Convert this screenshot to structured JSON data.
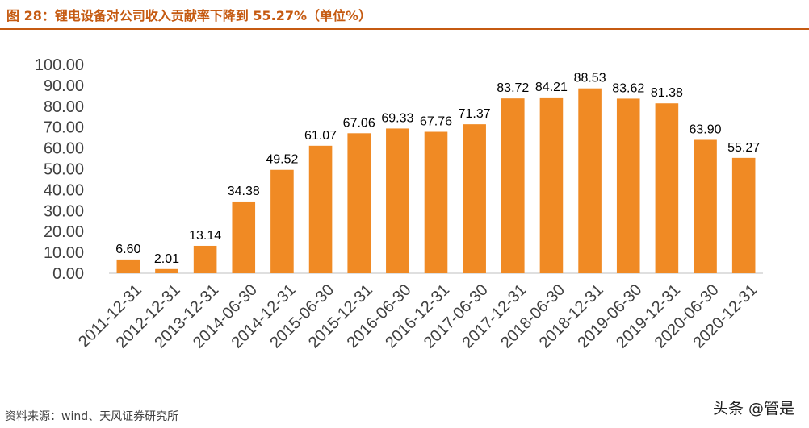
{
  "header": {
    "title": "图 28：锂电设备对公司收入贡献率下降到 55.27%（单位%）"
  },
  "footer": {
    "source": "资料来源：wind、天风证券研究所"
  },
  "watermark": "头条 @管是",
  "colors": {
    "bar": "#f08a24",
    "accent": "#c55a11",
    "axis": "#bfbfbf",
    "grid": "#d9d9d9"
  },
  "chart_data": {
    "type": "bar",
    "title": "",
    "xlabel": "",
    "ylabel": "",
    "ylim": [
      0,
      100
    ],
    "y_ticks": [
      "0.00",
      "10.00",
      "20.00",
      "30.00",
      "40.00",
      "50.00",
      "60.00",
      "70.00",
      "80.00",
      "90.00",
      "100.00"
    ],
    "grid": true,
    "legend": "none",
    "categories": [
      "2011-12-31",
      "2012-12-31",
      "2013-12-31",
      "2014-06-30",
      "2014-12-31",
      "2015-06-30",
      "2015-12-31",
      "2016-06-30",
      "2016-12-31",
      "2017-06-30",
      "2017-12-31",
      "2018-06-30",
      "2018-12-31",
      "2019-06-30",
      "2019-12-31",
      "2020-06-30",
      "2020-12-31"
    ],
    "values": [
      6.6,
      2.01,
      13.14,
      34.38,
      49.52,
      61.07,
      67.06,
      69.33,
      67.76,
      71.37,
      83.72,
      84.21,
      88.53,
      83.62,
      81.38,
      63.9,
      55.27
    ],
    "value_labels": [
      "6.60",
      "2.01",
      "13.14",
      "34.38",
      "49.52",
      "61.07",
      "67.06",
      "69.33",
      "67.76",
      "71.37",
      "83.72",
      "84.21",
      "88.53",
      "83.62",
      "81.38",
      "63.90",
      "55.27"
    ]
  }
}
